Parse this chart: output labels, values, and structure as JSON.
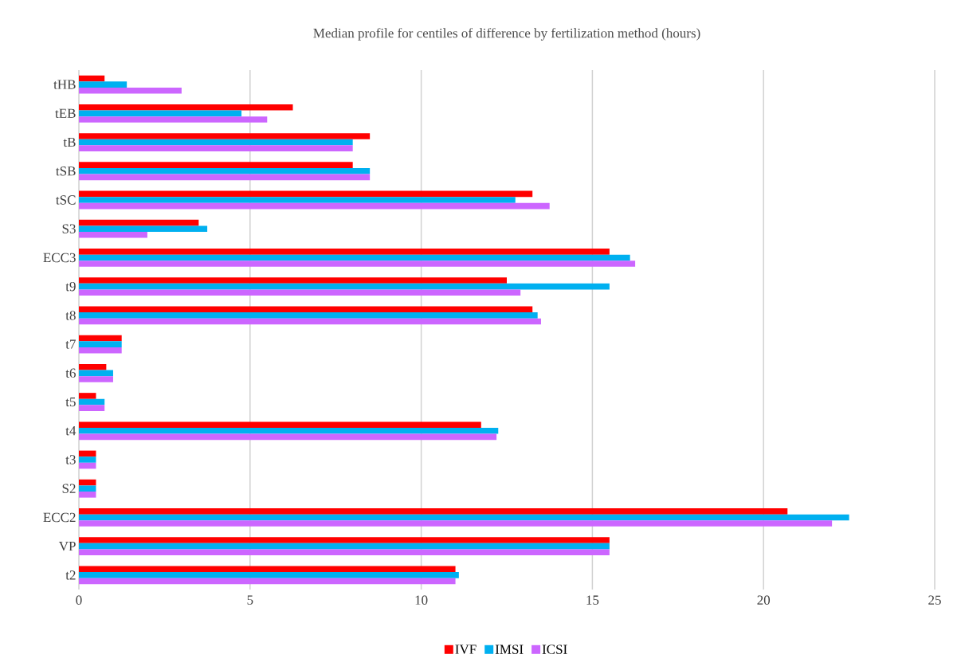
{
  "chart_data": {
    "type": "bar",
    "orientation": "horizontal",
    "title": "Median profile for centiles of difference by fertilization method (hours)",
    "categories": [
      "tHB",
      "tEB",
      "tB",
      "tSB",
      "tSC",
      "S3",
      "ECC3",
      "t9",
      "t8",
      "t7",
      "t6",
      "t5",
      "t4",
      "t3",
      "S2",
      "ECC2",
      "VP",
      "t2"
    ],
    "series": [
      {
        "name": "IVF",
        "color": "#ff0000",
        "values": [
          0.75,
          6.25,
          8.5,
          8.0,
          13.25,
          3.5,
          15.5,
          12.5,
          13.25,
          1.25,
          0.8,
          0.5,
          11.75,
          0.5,
          0.5,
          20.7,
          15.5,
          11.0
        ]
      },
      {
        "name": "IMSI",
        "color": "#00b0f0",
        "values": [
          1.4,
          4.75,
          8.0,
          8.5,
          12.75,
          3.75,
          16.1,
          15.5,
          13.4,
          1.25,
          1.0,
          0.75,
          12.25,
          0.5,
          0.5,
          22.5,
          15.5,
          11.1
        ]
      },
      {
        "name": "ICSI",
        "color": "#cc66ff",
        "values": [
          3.0,
          5.5,
          8.0,
          8.5,
          13.75,
          2.0,
          16.25,
          12.9,
          13.5,
          1.25,
          1.0,
          0.75,
          12.2,
          0.5,
          0.5,
          22.0,
          15.5,
          11.0
        ]
      }
    ],
    "xlim": [
      0,
      25
    ],
    "xticks": [
      0,
      5,
      10,
      15,
      20,
      25
    ],
    "grid": "x",
    "legend": "bottom"
  }
}
